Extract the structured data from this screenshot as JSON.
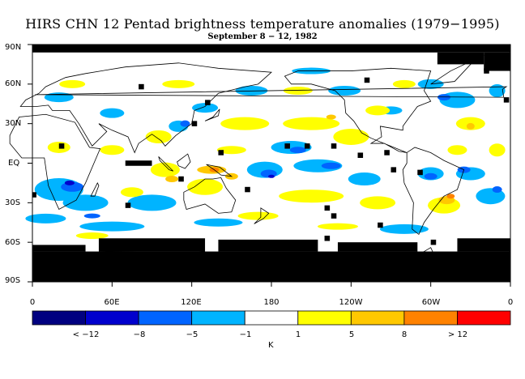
{
  "title": "HIRS CHN 12 Pentad brightness temperature anomalies (1979−1995)",
  "subtitle": "September 8 − 12, 1982",
  "y_axis": {
    "ticks": [
      "90N",
      "60N",
      "30N",
      "EQ",
      "30S",
      "60S",
      "90S"
    ],
    "values": [
      90,
      60,
      30,
      0,
      -30,
      -60,
      -90
    ]
  },
  "x_axis": {
    "ticks": [
      "0",
      "60E",
      "120E",
      "180",
      "120W",
      "60W",
      "0"
    ],
    "values": [
      0,
      60,
      120,
      180,
      240,
      300,
      360
    ]
  },
  "colorbar": {
    "unit": "K",
    "labels": [
      "< −12",
      "−8",
      "−5",
      "−1",
      "1",
      "5",
      "8",
      "> 12"
    ],
    "colors": [
      "#000080",
      "#0000cd",
      "#0064ff",
      "#00b4ff",
      "#ffffff",
      "#ffff00",
      "#ffc800",
      "#ff8200",
      "#ff0000"
    ],
    "bins": [
      "< -12",
      "-12 to -8",
      "-8 to -5",
      "-5 to -1",
      "-1 to 1",
      "1 to 5",
      "5 to 8",
      "8 to 12",
      "> 12"
    ]
  },
  "legend_colors": {
    "missing": "#000000",
    "coast": "#000000"
  }
}
